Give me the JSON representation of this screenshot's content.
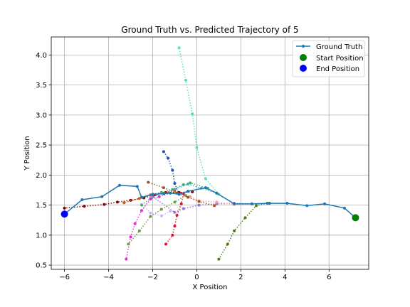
{
  "chart_data": {
    "type": "line",
    "title": "Ground Truth vs. Predicted Trajectory of 5",
    "xlabel": "X Position",
    "ylabel": "Y Position",
    "xlim": [
      -6.6,
      7.8
    ],
    "ylim": [
      0.43,
      4.3
    ],
    "xticks": [
      -6,
      -4,
      -2,
      0,
      2,
      4,
      6
    ],
    "yticks": [
      0.5,
      1.0,
      1.5,
      2.0,
      2.5,
      3.0,
      3.5,
      4.0
    ],
    "grid": true,
    "legend_position": "top-right",
    "legend": [
      {
        "label": "Ground Truth",
        "kind": "line-marker",
        "color": "#1f77b4"
      },
      {
        "label": "Start Position",
        "kind": "marker",
        "color": "#008000"
      },
      {
        "label": "End Position",
        "kind": "marker",
        "color": "#0000ff"
      }
    ],
    "ground_truth": {
      "name": "Ground Truth",
      "color": "#1f77b4",
      "x": [
        7.2,
        6.7,
        5.8,
        5.0,
        4.1,
        3.3,
        2.5,
        1.7,
        0.9,
        0.4,
        -0.4,
        -0.8,
        -1.2,
        -1.5,
        -2.0,
        -2.5,
        -2.7,
        -3.5,
        -4.3,
        -5.2,
        -6.0
      ],
      "y": [
        1.29,
        1.45,
        1.52,
        1.49,
        1.53,
        1.53,
        1.52,
        1.52,
        1.7,
        1.79,
        1.73,
        1.68,
        1.7,
        1.69,
        1.68,
        1.63,
        1.81,
        1.83,
        1.64,
        1.59,
        1.35
      ]
    },
    "start": {
      "x": 7.2,
      "y": 1.29,
      "color": "#008000"
    },
    "end": {
      "x": -6.0,
      "y": 1.35,
      "color": "#0000ff"
    },
    "predictions": [
      {
        "color": "#4aa8d4",
        "x": [
          0.9,
          0.2,
          -0.4,
          -1.0,
          -1.5,
          -2.0
        ],
        "y": [
          1.7,
          1.78,
          1.85,
          1.76,
          1.69,
          1.64
        ]
      },
      {
        "color": "#9370db",
        "x": [
          3.3,
          2.5,
          1.7,
          0.9,
          0.1,
          -0.6,
          -1.0,
          -2.0
        ],
        "y": [
          1.53,
          1.52,
          1.53,
          1.52,
          1.5,
          1.44,
          1.38,
          1.64
        ]
      },
      {
        "color": "#ff9999",
        "x": [
          3.3,
          2.5,
          1.7,
          0.9,
          0.1,
          -0.3,
          -0.7
        ],
        "y": [
          1.53,
          1.52,
          1.51,
          1.55,
          1.57,
          1.64,
          1.7
        ]
      },
      {
        "color": "#c8b3ff",
        "x": [
          -1.2,
          -1.6,
          -2.1,
          -2.5
        ],
        "y": [
          1.4,
          1.32,
          1.37,
          1.51
        ]
      },
      {
        "color": "#8b0000",
        "x": [
          -0.2,
          -0.8,
          -1.4,
          -1.9,
          -2.4,
          -3.0,
          -3.6,
          -4.2,
          -5.1,
          -6.0
        ],
        "y": [
          1.72,
          1.71,
          1.71,
          1.67,
          1.62,
          1.58,
          1.55,
          1.51,
          1.48,
          1.45
        ]
      },
      {
        "color": "#a0522d",
        "x": [
          0.8,
          0.1,
          -0.4,
          -0.9,
          -1.5,
          -2.2
        ],
        "y": [
          1.49,
          1.56,
          1.63,
          1.7,
          1.79,
          1.88
        ]
      },
      {
        "color": "#b5651d",
        "x": [
          -1.0,
          -1.6,
          -2.1,
          -2.6,
          -3.3
        ],
        "y": [
          1.73,
          1.71,
          1.67,
          1.61,
          1.54
        ]
      },
      {
        "color": "#1e4fa8",
        "x": [
          -0.8,
          -1.0,
          -1.1,
          -1.3,
          -1.5
        ],
        "y": [
          1.68,
          1.86,
          2.08,
          2.28,
          2.39
        ]
      },
      {
        "color": "#3cb371",
        "x": [
          0.5,
          -0.3,
          -0.6,
          -1.1,
          -1.6,
          -2.1,
          -2.5
        ],
        "y": [
          1.78,
          1.87,
          1.84,
          1.76,
          1.71,
          1.61,
          1.5
        ]
      },
      {
        "color": "#e8112d",
        "x": [
          -0.6,
          -0.7,
          -0.9,
          -1.0,
          -1.1,
          -1.4
        ],
        "y": [
          1.69,
          1.52,
          1.33,
          1.15,
          1.0,
          0.85
        ]
      },
      {
        "color": "#e030d0",
        "x": [
          -1.2,
          -1.7,
          -2.1,
          -2.5,
          -2.8,
          -3.0,
          -3.2
        ],
        "y": [
          1.7,
          1.64,
          1.6,
          1.41,
          1.19,
          0.97,
          0.6
        ]
      },
      {
        "color": "#6b9e3a",
        "x": [
          -0.5,
          -1.0,
          -1.6,
          -2.1,
          -2.6,
          -3.1
        ],
        "y": [
          1.66,
          1.55,
          1.43,
          1.31,
          1.07,
          0.85
        ]
      },
      {
        "color": "#55e0b0",
        "x": [
          1.0,
          0.4,
          0.0,
          -0.2,
          -0.5,
          -0.8
        ],
        "y": [
          1.68,
          1.94,
          2.46,
          3.02,
          3.58,
          4.12
        ]
      },
      {
        "color": "#4d7c0f",
        "x": [
          3.2,
          2.7,
          2.2,
          1.7,
          1.4,
          1.0
        ],
        "y": [
          1.53,
          1.49,
          1.29,
          1.07,
          0.85,
          0.6
        ]
      }
    ]
  }
}
